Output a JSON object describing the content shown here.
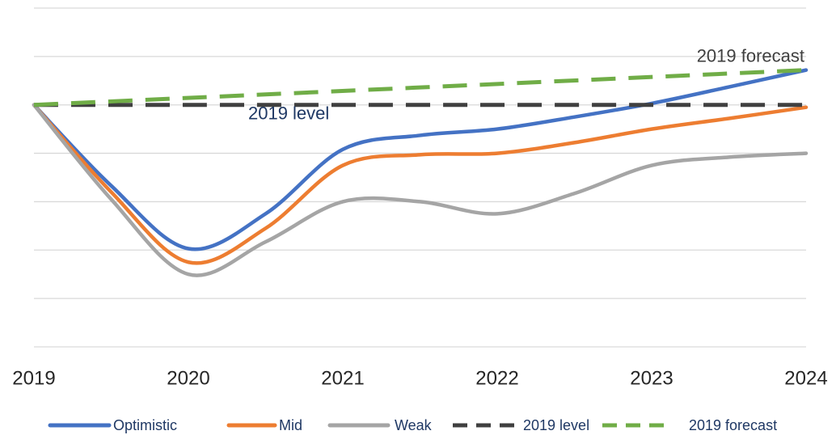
{
  "chart_data": {
    "type": "line",
    "x": [
      2019,
      2019.5,
      2020,
      2020.5,
      2021,
      2021.5,
      2022,
      2022.5,
      2023,
      2023.5,
      2024
    ],
    "series": [
      {
        "name": "Optimistic",
        "color": "#4472c4",
        "values": [
          0,
          -1.67,
          -2.97,
          -2.25,
          -0.92,
          -0.63,
          -0.5,
          -0.25,
          0.03,
          0.37,
          0.72
        ]
      },
      {
        "name": "Mid",
        "color": "#ed7d31",
        "values": [
          0,
          -1.8,
          -3.25,
          -2.55,
          -1.25,
          -1.03,
          -1.0,
          -0.78,
          -0.5,
          -0.28,
          -0.05
        ]
      },
      {
        "name": "Weak",
        "color": "#a5a5a5",
        "values": [
          0,
          -1.95,
          -3.5,
          -2.83,
          -2.0,
          -2.0,
          -2.25,
          -1.83,
          -1.25,
          -1.08,
          -1.0
        ]
      },
      {
        "name": "2019 level",
        "color": "#404040",
        "dashed": true,
        "x": [
          2019,
          2024
        ],
        "values": [
          0,
          0
        ]
      },
      {
        "name": "2019 forecast",
        "color": "#70ad47",
        "dashed": true,
        "x": [
          2019,
          2024
        ],
        "values": [
          0,
          0.72
        ]
      }
    ],
    "annotations": [
      {
        "text": "2019 forecast",
        "x": 2024,
        "y": 0.72
      },
      {
        "text": "2019 level",
        "x": 2020.65,
        "y": 0
      }
    ],
    "xlim": [
      2019,
      2024
    ],
    "xticks": [
      2019,
      2020,
      2021,
      2022,
      2023,
      2024
    ],
    "ylim": [
      -5,
      2
    ],
    "yticks": [
      -5,
      -4,
      -3,
      -2,
      -1,
      0,
      1,
      2
    ],
    "grid": true,
    "legend": "bottom"
  }
}
